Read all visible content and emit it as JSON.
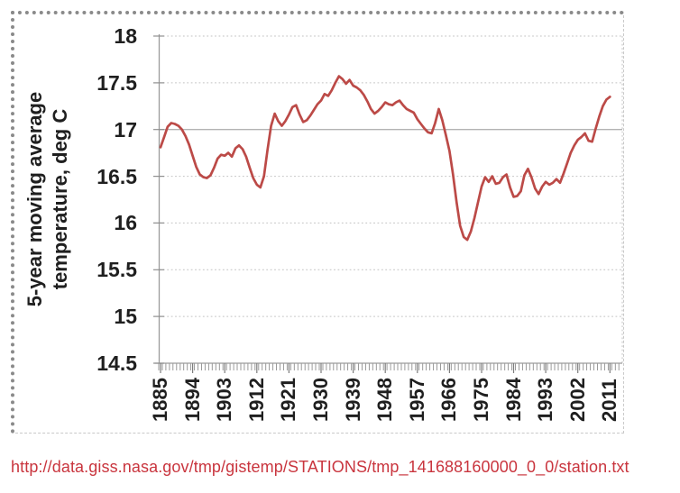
{
  "chart_data": {
    "type": "line",
    "title": "",
    "xlabel": "",
    "ylabel_lines": [
      "5-year moving average",
      "temperature, deg C"
    ],
    "ylim": [
      14.5,
      18
    ],
    "ytick_step": 0.5,
    "xlim": [
      1885,
      2014
    ],
    "grid": "horizontal-dotted",
    "legend": "none",
    "y_tick_labels": [
      "18",
      "17.5",
      "17",
      "16.5",
      "16",
      "15.5",
      "15",
      "14.5"
    ],
    "x_tick_labels": [
      "1885",
      "1894",
      "1903",
      "1912",
      "1921",
      "1930",
      "1939",
      "1948",
      "1957",
      "1966",
      "1975",
      "1984",
      "1993",
      "2002",
      "2011"
    ],
    "x_tick_interval_years": 9,
    "line_color": "#bc4a47",
    "colors": {
      "grid_dotted": "#c2c2c2",
      "grid_solid": "#b3b3b3",
      "axis": "#9c9c9c",
      "tick": "#8f8f8f",
      "label_text": "#1f1f1f"
    },
    "series": [
      {
        "name": "5-year moving average temperature, deg C",
        "points": [
          [
            1885,
            16.81
          ],
          [
            1886,
            16.92
          ],
          [
            1887,
            17.03
          ],
          [
            1888,
            17.07
          ],
          [
            1889,
            17.06
          ],
          [
            1890,
            17.04
          ],
          [
            1891,
            17.0
          ],
          [
            1892,
            16.93
          ],
          [
            1893,
            16.84
          ],
          [
            1894,
            16.72
          ],
          [
            1895,
            16.6
          ],
          [
            1896,
            16.52
          ],
          [
            1897,
            16.49
          ],
          [
            1898,
            16.48
          ],
          [
            1899,
            16.51
          ],
          [
            1900,
            16.59
          ],
          [
            1901,
            16.69
          ],
          [
            1902,
            16.73
          ],
          [
            1903,
            16.72
          ],
          [
            1904,
            16.75
          ],
          [
            1905,
            16.71
          ],
          [
            1906,
            16.8
          ],
          [
            1907,
            16.83
          ],
          [
            1908,
            16.79
          ],
          [
            1909,
            16.71
          ],
          [
            1910,
            16.59
          ],
          [
            1911,
            16.48
          ],
          [
            1912,
            16.41
          ],
          [
            1913,
            16.38
          ],
          [
            1914,
            16.5
          ],
          [
            1915,
            16.78
          ],
          [
            1916,
            17.04
          ],
          [
            1917,
            17.17
          ],
          [
            1918,
            17.09
          ],
          [
            1919,
            17.04
          ],
          [
            1920,
            17.09
          ],
          [
            1921,
            17.16
          ],
          [
            1922,
            17.24
          ],
          [
            1923,
            17.26
          ],
          [
            1924,
            17.16
          ],
          [
            1925,
            17.08
          ],
          [
            1926,
            17.1
          ],
          [
            1927,
            17.15
          ],
          [
            1928,
            17.21
          ],
          [
            1929,
            17.27
          ],
          [
            1930,
            17.31
          ],
          [
            1931,
            17.38
          ],
          [
            1932,
            17.36
          ],
          [
            1933,
            17.42
          ],
          [
            1934,
            17.5
          ],
          [
            1935,
            17.57
          ],
          [
            1936,
            17.54
          ],
          [
            1937,
            17.49
          ],
          [
            1938,
            17.53
          ],
          [
            1939,
            17.47
          ],
          [
            1940,
            17.45
          ],
          [
            1941,
            17.42
          ],
          [
            1942,
            17.37
          ],
          [
            1943,
            17.3
          ],
          [
            1944,
            17.22
          ],
          [
            1945,
            17.17
          ],
          [
            1946,
            17.2
          ],
          [
            1947,
            17.24
          ],
          [
            1948,
            17.29
          ],
          [
            1949,
            17.27
          ],
          [
            1950,
            17.26
          ],
          [
            1951,
            17.29
          ],
          [
            1952,
            17.31
          ],
          [
            1953,
            17.26
          ],
          [
            1954,
            17.22
          ],
          [
            1955,
            17.2
          ],
          [
            1956,
            17.18
          ],
          [
            1957,
            17.11
          ],
          [
            1958,
            17.06
          ],
          [
            1959,
            17.01
          ],
          [
            1960,
            16.97
          ],
          [
            1961,
            16.96
          ],
          [
            1962,
            17.07
          ],
          [
            1963,
            17.22
          ],
          [
            1964,
            17.1
          ],
          [
            1965,
            16.94
          ],
          [
            1966,
            16.77
          ],
          [
            1967,
            16.52
          ],
          [
            1968,
            16.22
          ],
          [
            1969,
            15.97
          ],
          [
            1970,
            15.85
          ],
          [
            1971,
            15.82
          ],
          [
            1972,
            15.91
          ],
          [
            1973,
            16.05
          ],
          [
            1974,
            16.22
          ],
          [
            1975,
            16.39
          ],
          [
            1976,
            16.49
          ],
          [
            1977,
            16.44
          ],
          [
            1978,
            16.5
          ],
          [
            1979,
            16.42
          ],
          [
            1980,
            16.43
          ],
          [
            1981,
            16.49
          ],
          [
            1982,
            16.52
          ],
          [
            1983,
            16.38
          ],
          [
            1984,
            16.28
          ],
          [
            1985,
            16.29
          ],
          [
            1986,
            16.34
          ],
          [
            1987,
            16.51
          ],
          [
            1988,
            16.58
          ],
          [
            1989,
            16.49
          ],
          [
            1990,
            16.37
          ],
          [
            1991,
            16.31
          ],
          [
            1992,
            16.39
          ],
          [
            1993,
            16.44
          ],
          [
            1994,
            16.41
          ],
          [
            1995,
            16.43
          ],
          [
            1996,
            16.47
          ],
          [
            1997,
            16.43
          ],
          [
            1998,
            16.53
          ],
          [
            1999,
            16.64
          ],
          [
            2000,
            16.75
          ],
          [
            2001,
            16.83
          ],
          [
            2002,
            16.89
          ],
          [
            2003,
            16.92
          ],
          [
            2004,
            16.96
          ],
          [
            2005,
            16.88
          ],
          [
            2006,
            16.87
          ],
          [
            2007,
            17.01
          ],
          [
            2008,
            17.14
          ],
          [
            2009,
            17.25
          ],
          [
            2010,
            17.32
          ],
          [
            2011,
            17.35
          ]
        ]
      }
    ]
  },
  "source_link": {
    "text": "http://data.giss.nasa.gov/tmp/gistemp/STATIONS/tmp_141688160000_0_0/station.txt",
    "color": "#c9353e"
  }
}
